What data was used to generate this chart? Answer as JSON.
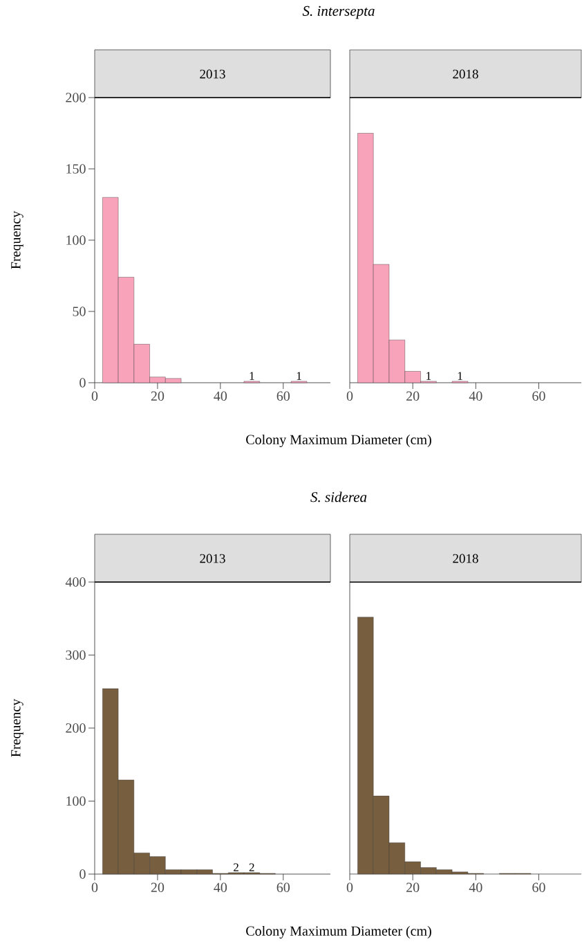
{
  "chart_data": [
    {
      "type": "histogram",
      "title": "*S. intersepta*",
      "subtitle": "2013",
      "xlabel": "Colony Maximum Diameter (cm)",
      "ylabel": "Frequency",
      "bins": [
        2.5,
        7.5,
        12.5,
        17.5,
        22.5,
        27.5,
        32.5,
        37.5,
        42.5,
        47.5,
        52.5,
        57.5,
        62.5,
        67.5,
        72.5
      ],
      "values": [
        130,
        74,
        27,
        4,
        3,
        0,
        0,
        0,
        0,
        1,
        0,
        0,
        1,
        0
      ],
      "color": "#f9a3bb",
      "xlim": [
        0,
        75
      ],
      "ylim": [
        0,
        200
      ],
      "xticks": [
        0,
        20,
        40,
        60
      ],
      "yticks": [
        0,
        50,
        100,
        150,
        200
      ],
      "annotations": [
        {
          "text": "1",
          "x": 50,
          "y": 1
        },
        {
          "text": "1",
          "x": 65,
          "y": 1
        }
      ]
    },
    {
      "type": "histogram",
      "subtitle": "2018",
      "bins": [
        2.5,
        7.5,
        12.5,
        17.5,
        22.5,
        27.5,
        32.5,
        37.5,
        42.5,
        47.5,
        52.5,
        57.5,
        62.5,
        67.5,
        72.5
      ],
      "values": [
        175,
        83,
        30,
        8,
        1,
        0,
        1,
        0,
        0,
        0,
        0,
        0,
        0,
        0
      ],
      "color": "#f9a3bb",
      "xlim": [
        0,
        73.5
      ],
      "ylim": [
        0,
        200
      ],
      "xticks": [
        0,
        20,
        40,
        60
      ],
      "tick_labels": "x",
      "annotations": [
        {
          "text": "1",
          "x": 25,
          "y": 1
        },
        {
          "text": "1",
          "x": 35,
          "y": 1
        }
      ]
    },
    {
      "type": "histogram",
      "title": "*S. siderea*",
      "subtitle": "2013",
      "xlabel": "Colony Maximum Diameter (cm)",
      "ylabel": "Frequency",
      "bins": [
        2.5,
        7.5,
        12.5,
        17.5,
        22.5,
        27.5,
        32.5,
        37.5,
        42.5,
        47.5,
        52.5,
        57.5,
        62.5,
        67.5,
        72.5
      ],
      "values": [
        254,
        129,
        29,
        24,
        6,
        6,
        6,
        1,
        2,
        2,
        1,
        0,
        0,
        0
      ],
      "color": "#775e3f",
      "xlim": [
        0,
        75
      ],
      "ylim": [
        0,
        400
      ],
      "xticks": [
        0,
        20,
        40,
        60
      ],
      "yticks": [
        0,
        100,
        200,
        300,
        400
      ],
      "annotations": [
        {
          "text": "2",
          "x": 45,
          "y": 2
        },
        {
          "text": "2",
          "x": 50,
          "y": 2
        }
      ]
    },
    {
      "type": "histogram",
      "subtitle": "2018",
      "bins": [
        2.5,
        7.5,
        12.5,
        17.5,
        22.5,
        27.5,
        32.5,
        37.5,
        42.5,
        47.5,
        52.5,
        57.5,
        62.5,
        67.5,
        72.5
      ],
      "values": [
        352,
        107,
        43,
        17,
        9,
        6,
        3,
        1,
        0,
        1,
        1,
        0,
        0,
        0
      ],
      "color": "#775e3f",
      "xlim": [
        0,
        73.5
      ],
      "ylim": [
        0,
        400
      ],
      "xticks": [
        0,
        20,
        40,
        60
      ],
      "tick_labels": "x"
    }
  ]
}
